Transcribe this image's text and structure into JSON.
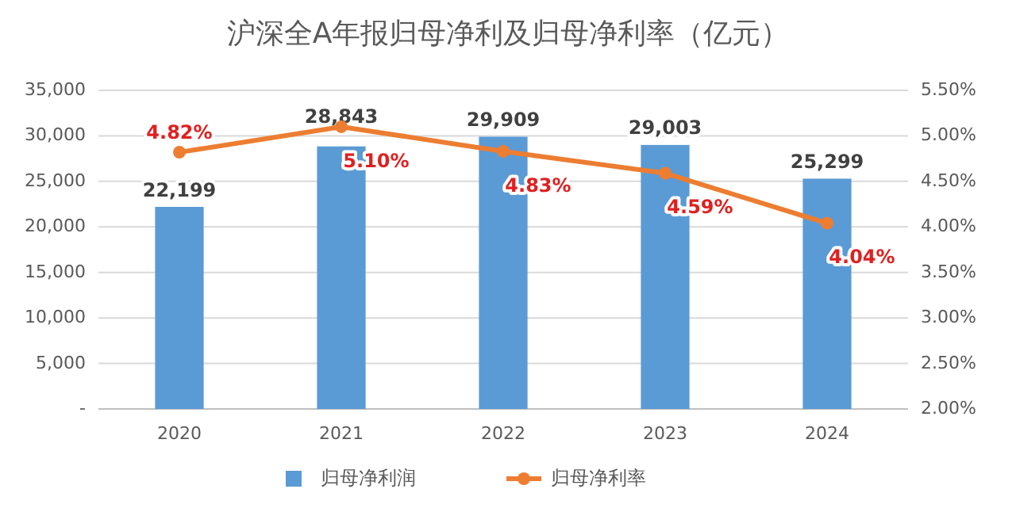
{
  "chart_data": {
    "type": "bar",
    "title": "沪深全A年报归母净利及归母净利率（亿元）",
    "categories": [
      "2020",
      "2021",
      "2022",
      "2023",
      "2024"
    ],
    "series": [
      {
        "name": "归母净利润",
        "color": "#5b9bd5",
        "values": [
          22199,
          28843,
          29909,
          29003,
          25299
        ],
        "value_labels": [
          "22,199",
          "28,843",
          "29,909",
          "29,003",
          "25,299"
        ]
      },
      {
        "name": "归母净利率",
        "type": "line",
        "axis": "y2",
        "color": "#ed7d31",
        "marker": "circle",
        "values": [
          4.82,
          5.1,
          4.83,
          4.59,
          4.04
        ],
        "value_labels": [
          "4.82%",
          "5.10%",
          "4.83%",
          "4.59%",
          "4.04%"
        ]
      }
    ],
    "ylim": [
      0,
      35000
    ],
    "yticks": [
      {
        "value": 0,
        "label": "-"
      },
      {
        "value": 5000,
        "label": "5,000"
      },
      {
        "value": 10000,
        "label": "10,000"
      },
      {
        "value": 15000,
        "label": "15,000"
      },
      {
        "value": 20000,
        "label": "20,000"
      },
      {
        "value": 25000,
        "label": "25,000"
      },
      {
        "value": 30000,
        "label": "30,000"
      },
      {
        "value": 35000,
        "label": "35,000"
      }
    ],
    "y2lim": [
      2,
      5.5
    ],
    "y2ticks": [
      {
        "value": 2,
        "label": "2.00%"
      },
      {
        "value": 2.5,
        "label": "2.50%"
      },
      {
        "value": 3,
        "label": "3.00%"
      },
      {
        "value": 3.5,
        "label": "3.50%"
      },
      {
        "value": 4,
        "label": "4.00%"
      },
      {
        "value": 4.5,
        "label": "4.50%"
      },
      {
        "value": 5,
        "label": "5.00%"
      },
      {
        "value": 5.5,
        "label": "5.50%"
      }
    ],
    "grid": "y",
    "legend": "bottom"
  }
}
